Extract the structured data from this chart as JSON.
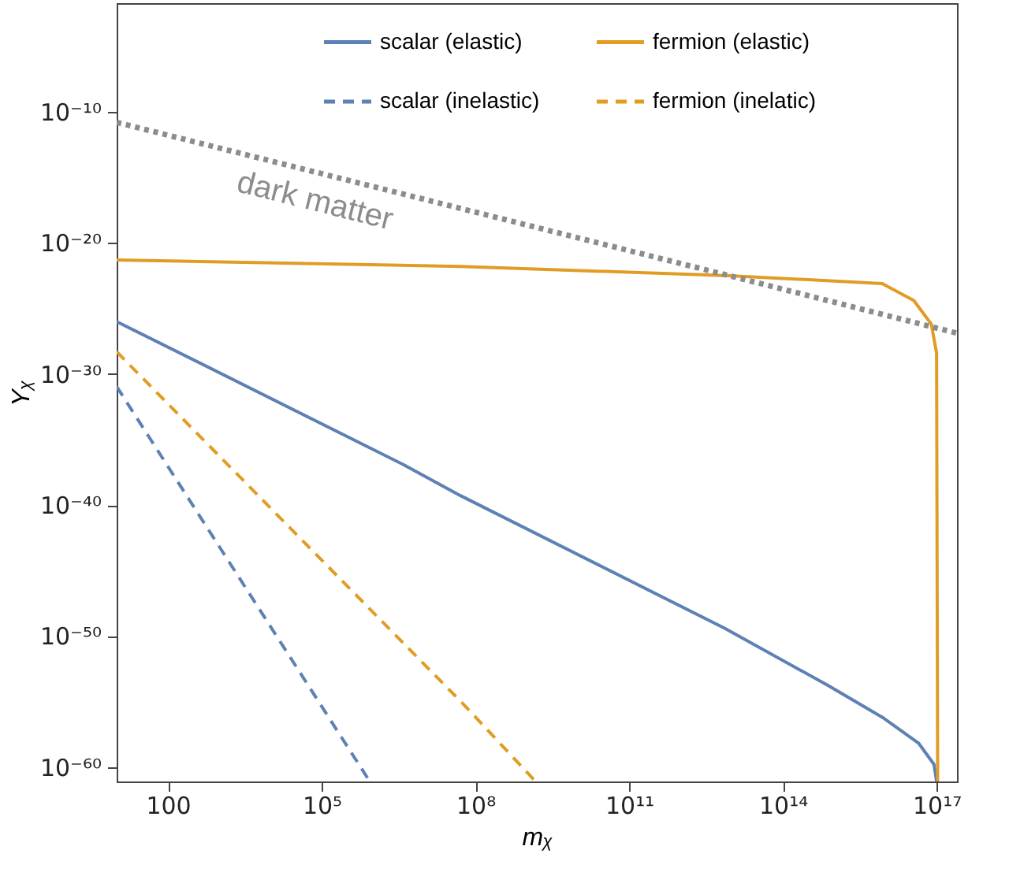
{
  "chart_data": {
    "type": "line",
    "xlabel": "mᵪ",
    "ylabel": "Yᵪ",
    "log": "xy",
    "grid": false,
    "legend": "top",
    "marker": "none",
    "xlim": [
      10,
      2.5e+17
    ],
    "ylim": [
      7.9e-62,
      0.02
    ],
    "xticks": [
      100,
      {
        "value": 100000.0,
        "label": "10⁵"
      },
      {
        "value": 100000000.0,
        "label": "10⁸"
      },
      {
        "value": 100000000000.0,
        "label": "10¹¹"
      },
      {
        "value": 100000000000000.0,
        "label": "10¹⁴"
      },
      {
        "value": 1e+17,
        "label": "10¹⁷"
      }
    ],
    "yticks": [
      {
        "value": 1e-60,
        "label": "10⁻⁶⁰"
      },
      {
        "value": 1e-50,
        "label": "10⁻⁵⁰"
      },
      {
        "value": 1e-40,
        "label": "10⁻⁴⁰"
      },
      {
        "value": 1e-30,
        "label": "10⁻³⁰"
      },
      {
        "value": 1e-20,
        "label": "10⁻²⁰"
      },
      {
        "value": 1e-10,
        "label": "10⁻¹⁰"
      }
    ],
    "annotations": [
      "dark matter"
    ],
    "series": [
      {
        "name": "scalar (elastic)",
        "color": "#5e81b5",
        "line_style": "solid",
        "x": [
          10,
          3800000.0,
          52000000.0,
          7200000000000.0,
          780000000000000.0,
          8700000000000000.0,
          4.5e+16,
          8.9e+16,
          1e+17
        ],
        "values": [
          1e-26,
          1.3e-37,
          5e-40,
          4e-50,
          1.6e-54,
          6.3e-57,
          6.3e-59,
          1.6e-60,
          7.9e-62
        ]
      },
      {
        "name": "scalar (inelastic)",
        "color": "#5e81b5",
        "line_style": "dashed",
        "x": [
          10,
          870000.0
        ],
        "values": [
          1.1e-31,
          7.9e-62
        ]
      },
      {
        "name": "fermion (elastic)",
        "color": "#e19c24",
        "line_style": "solid",
        "x": [
          10,
          52000000.0,
          8900000000000.0,
          8700000000000000.0,
          3.6e+16,
          7.9e+16,
          1e+17,
          1.05e+17
        ],
        "values": [
          5e-22,
          1.6e-22,
          3.2e-23,
          7.9e-24,
          4e-25,
          6.3e-27,
          4e-29,
          7.9e-62
        ]
      },
      {
        "name": "fermion (inelatic)",
        "color": "#e19c24",
        "line_style": "dashed",
        "x": [
          10,
          52000000.0,
          1500000000.0
        ],
        "values": [
          5e-29,
          1e-55,
          7.9e-62
        ]
      },
      {
        "color": "#8c8c8c",
        "line_style": "dotted",
        "x": [
          10,
          8900000000000.0,
          2.5e+17
        ],
        "values": [
          1.6e-11,
          3.2e-23,
          1.3e-27
        ]
      }
    ]
  }
}
